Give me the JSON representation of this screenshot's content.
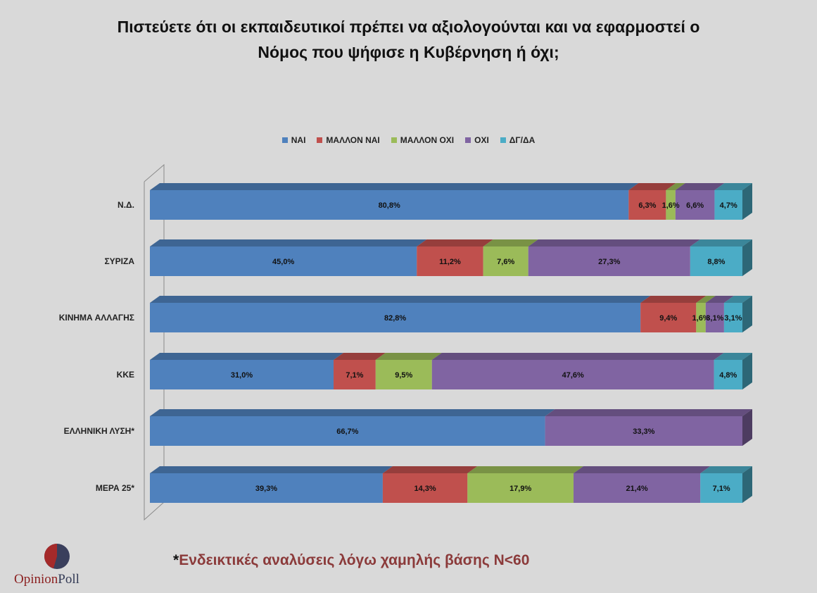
{
  "title_lines": [
    "Πιστεύετε ότι οι εκπαιδευτικοί πρέπει να αξιολογούνται και να εφαρμοστεί ο",
    "Νόμος που ψήφισε η Κυβέρνηση ή όχι;"
  ],
  "footnote": {
    "star": "*",
    "text": "Ενδεικτικές αναλύσεις λόγω χαμηλής βάσης Ν<60"
  },
  "logo": {
    "part1": "Opinion",
    "part2": "Poll"
  },
  "chart_data": {
    "type": "bar",
    "orientation": "horizontal",
    "stacked": true,
    "style": "3d",
    "legend_position": "top",
    "categories": [
      "Ν.Δ.",
      "ΣΥΡΙΖΑ",
      "ΚΙΝΗΜΑ ΑΛΛΑΓΗΣ",
      "ΚΚΕ",
      "ΕΛΛΗΝΙΚΗ ΛΥΣΗ*",
      "ΜΕΡΑ 25*"
    ],
    "series": [
      {
        "name": "ΝΑΙ",
        "color": "#4f81bd",
        "values": [
          80.8,
          45.0,
          82.8,
          31.0,
          66.7,
          39.3
        ],
        "labels": [
          "80,8%",
          "45,0%",
          "82,8%",
          "31,0%",
          "66,7%",
          "39,3%"
        ]
      },
      {
        "name": "ΜΑΛΛΟΝ ΝΑΙ",
        "color": "#c0504d",
        "values": [
          6.3,
          11.2,
          9.4,
          7.1,
          0,
          14.3
        ],
        "labels": [
          "6,3%",
          "11,2%",
          "9,4%",
          "7,1%",
          "",
          "14,3%"
        ]
      },
      {
        "name": "ΜΑΛΛΟΝ ΟΧΙ",
        "color": "#9bbb59",
        "values": [
          1.6,
          7.6,
          1.6,
          9.5,
          0,
          17.9
        ],
        "labels": [
          "1,6%",
          "7,6%",
          "1,6%",
          "9,5%",
          "",
          "17,9%"
        ]
      },
      {
        "name": "ΟΧΙ",
        "color": "#8064a2",
        "values": [
          6.6,
          27.3,
          3.1,
          47.6,
          33.3,
          21.4
        ],
        "labels": [
          "6,6%",
          "27,3%",
          "3,1%",
          "47,6%",
          "33,3%",
          "21,4%"
        ]
      },
      {
        "name": "ΔΓ/ΔΑ",
        "color": "#4bacc6",
        "values": [
          4.7,
          8.8,
          3.1,
          4.8,
          0,
          7.1
        ],
        "labels": [
          "4,7%",
          "8,8%",
          "3,1%",
          "4,8%",
          "",
          "7,1%"
        ]
      }
    ]
  }
}
